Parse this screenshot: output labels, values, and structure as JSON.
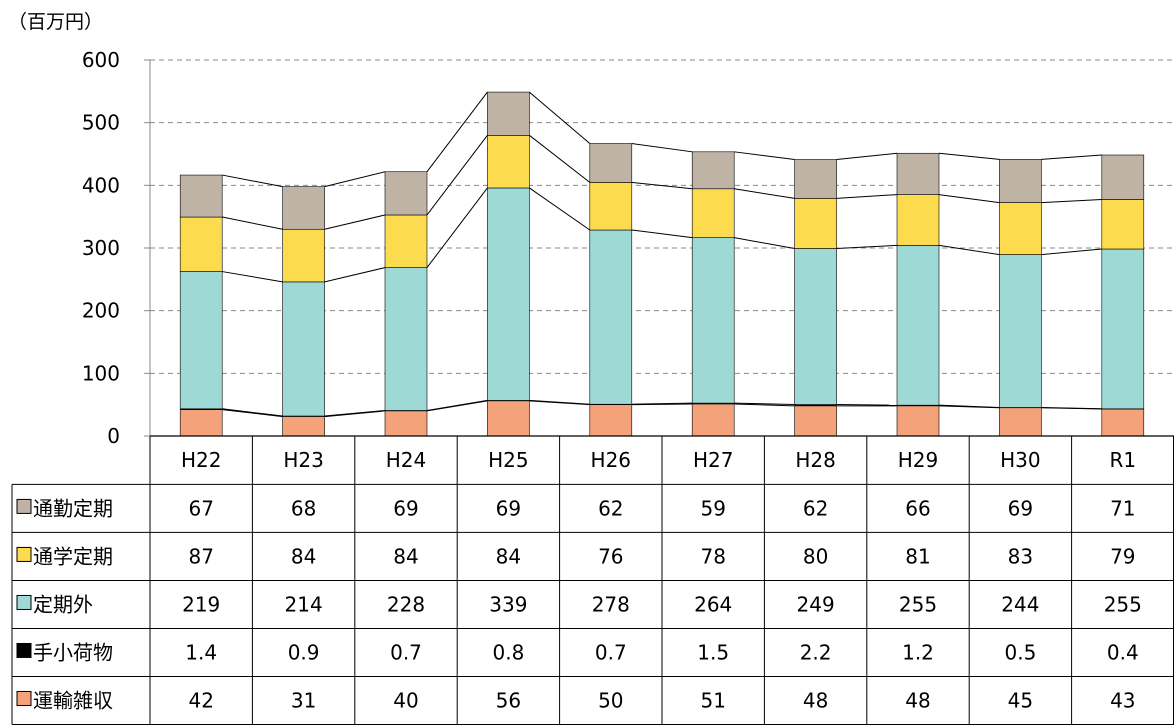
{
  "chart_data": {
    "type": "bar",
    "stacked": true,
    "unit_label": "（百万円）",
    "categories": [
      "H22",
      "H23",
      "H24",
      "H25",
      "H26",
      "H27",
      "H28",
      "H29",
      "H30",
      "R1"
    ],
    "ylim": [
      0,
      600
    ],
    "yticks": [
      0,
      100,
      200,
      300,
      400,
      500,
      600
    ],
    "grid": true,
    "series": [
      {
        "name": "通勤定期",
        "color": "#bfb3a6",
        "values": [
          67,
          68,
          69,
          69,
          62,
          59,
          62,
          66,
          69,
          71
        ]
      },
      {
        "name": "通学定期",
        "color": "#fcdb4e",
        "values": [
          87,
          84,
          84,
          84,
          76,
          78,
          80,
          81,
          83,
          79
        ]
      },
      {
        "name": "定期外",
        "color": "#9fd9d6",
        "values": [
          219,
          214,
          228,
          339,
          278,
          264,
          249,
          255,
          244,
          255
        ]
      },
      {
        "name": "手小荷物",
        "color": "#000000",
        "values": [
          1.4,
          0.9,
          0.7,
          0.8,
          0.7,
          1.5,
          2.2,
          1.2,
          0.5,
          0.4
        ]
      },
      {
        "name": "運輸雑収",
        "color": "#f4a27a",
        "values": [
          42,
          31,
          40,
          56,
          50,
          51,
          48,
          48,
          45,
          43
        ]
      }
    ],
    "value_labels": [
      [
        "67",
        "68",
        "69",
        "69",
        "62",
        "59",
        "62",
        "66",
        "69",
        "71"
      ],
      [
        "87",
        "84",
        "84",
        "84",
        "76",
        "78",
        "80",
        "81",
        "83",
        "79"
      ],
      [
        "219",
        "214",
        "228",
        "339",
        "278",
        "264",
        "249",
        "255",
        "244",
        "255"
      ],
      [
        "1.4",
        "0.9",
        "0.7",
        "0.8",
        "0.7",
        "1.5",
        "2.2",
        "1.2",
        "0.5",
        "0.4"
      ],
      [
        "42",
        "31",
        "40",
        "56",
        "50",
        "51",
        "48",
        "48",
        "45",
        "43"
      ]
    ],
    "stack_order_bottom_to_top": [
      4,
      3,
      2,
      1,
      0
    ]
  }
}
